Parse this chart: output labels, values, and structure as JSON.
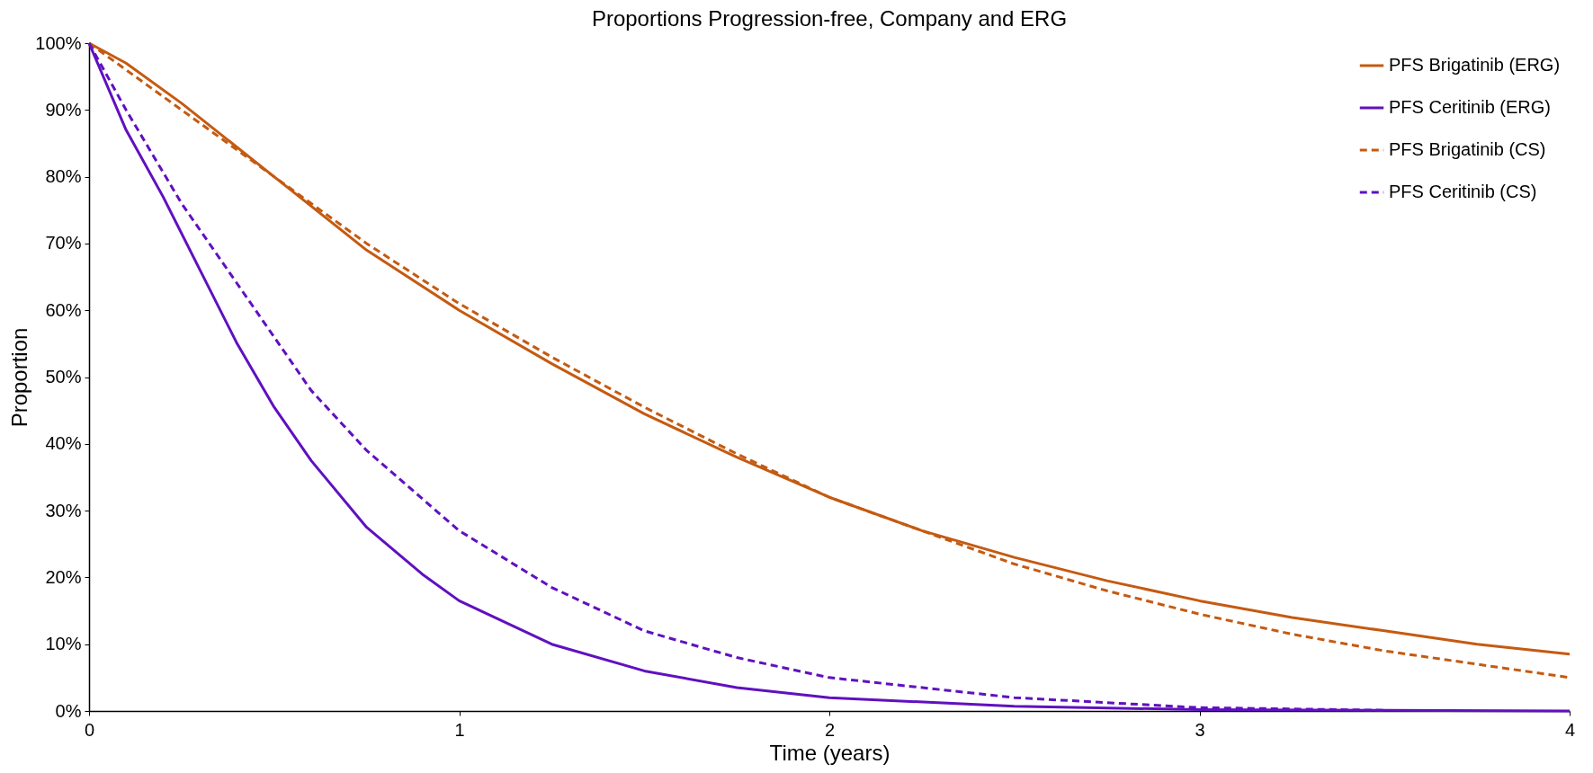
{
  "chart_data": {
    "type": "line",
    "title": "Proportions Progression-free, Company and ERG",
    "xlabel": "Time (years)",
    "ylabel": "Proportion",
    "xlim": [
      0,
      4
    ],
    "xticks": [
      0,
      1,
      2,
      3,
      4
    ],
    "ylim": [
      0,
      1
    ],
    "yticks": [
      {
        "value": 0,
        "label": "0%"
      },
      {
        "value": 0.1,
        "label": "10%"
      },
      {
        "value": 0.2,
        "label": "20%"
      },
      {
        "value": 0.3,
        "label": "30%"
      },
      {
        "value": 0.4,
        "label": "40%"
      },
      {
        "value": 0.5,
        "label": "50%"
      },
      {
        "value": 0.6,
        "label": "60%"
      },
      {
        "value": 0.7,
        "label": "70%"
      },
      {
        "value": 0.8,
        "label": "80%"
      },
      {
        "value": 0.9,
        "label": "90%"
      },
      {
        "value": 1,
        "label": "100%"
      }
    ],
    "grid": false,
    "legend": "top right",
    "marker": "none",
    "series": [
      {
        "name": "PFS Brigatinib (ERG)",
        "color": "#c55a11",
        "line_style": "solid",
        "x": [
          0,
          0.1,
          0.25,
          0.5,
          0.75,
          1,
          1.25,
          1.5,
          1.75,
          2,
          2.25,
          2.5,
          2.75,
          3,
          3.25,
          3.5,
          3.75,
          4
        ],
        "values": [
          1,
          0.97,
          0.91,
          0.8,
          0.69,
          0.6,
          0.52,
          0.445,
          0.38,
          0.32,
          0.27,
          0.23,
          0.195,
          0.165,
          0.14,
          0.12,
          0.1,
          0.085
        ]
      },
      {
        "name": "PFS Ceritinib (ERG)",
        "color": "#6010c0",
        "line_style": "solid",
        "x": [
          0,
          0.1,
          0.2,
          0.3,
          0.4,
          0.5,
          0.6,
          0.75,
          0.9,
          1,
          1.25,
          1.5,
          1.75,
          2,
          2.5,
          3,
          3.5,
          4
        ],
        "values": [
          1,
          0.87,
          0.77,
          0.66,
          0.55,
          0.455,
          0.375,
          0.275,
          0.205,
          0.165,
          0.1,
          0.06,
          0.035,
          0.02,
          0.007,
          0.002,
          0.001,
          0
        ]
      },
      {
        "name": "PFS Brigatinib (CS)",
        "color": "#c55a11",
        "line_style": "dashed",
        "x": [
          0,
          0.25,
          0.5,
          0.75,
          1,
          1.25,
          1.5,
          1.75,
          2,
          2.25,
          2.5,
          2.75,
          3,
          3.25,
          3.5,
          3.75,
          4
        ],
        "values": [
          1,
          0.9,
          0.8,
          0.7,
          0.61,
          0.53,
          0.455,
          0.385,
          0.32,
          0.27,
          0.22,
          0.18,
          0.145,
          0.115,
          0.09,
          0.07,
          0.05
        ]
      },
      {
        "name": "PFS Ceritinib (CS)",
        "color": "#6010c0",
        "line_style": "dashed",
        "x": [
          0,
          0.1,
          0.25,
          0.4,
          0.5,
          0.6,
          0.75,
          1,
          1.25,
          1.5,
          1.75,
          2,
          2.5,
          3,
          3.5
        ],
        "values": [
          1,
          0.9,
          0.76,
          0.64,
          0.56,
          0.48,
          0.39,
          0.27,
          0.185,
          0.12,
          0.08,
          0.05,
          0.02,
          0.005,
          0.001
        ]
      }
    ]
  }
}
